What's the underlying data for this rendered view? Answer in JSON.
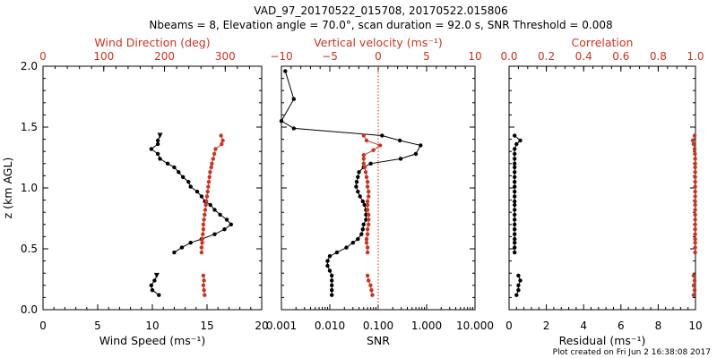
{
  "title_line1": "VAD_97_20170522_015708, 20170522.015806",
  "title_line2": "Nbeams = 8, Elevation angle = 70.0°, scan duration = 92.0 s, SNR Threshold = 0.008",
  "footer": "Plot created on Fri Jun  2 16:38:08 2017",
  "colors": {
    "black": "#000000",
    "red": "#cc3322",
    "dotted": "#dd2200"
  },
  "chart_data": [
    {
      "type": "line",
      "panel": "wind",
      "ylabel": "z (km AGL)",
      "ylim": [
        0,
        2.0
      ],
      "yticks": [
        "0.0",
        "0.5",
        "1.0",
        "1.5",
        "2.0"
      ],
      "xlabel": "Wind Speed (ms⁻¹)",
      "xlim": [
        0,
        20
      ],
      "xticks": [
        "0",
        "5",
        "10",
        "15",
        "20"
      ],
      "top_label": "Wind Direction (deg)",
      "top_lim": [
        0,
        360
      ],
      "top_ticks": [
        "0",
        "100",
        "200",
        "300"
      ],
      "series": [
        {
          "axis": "bottom",
          "color": "#000000",
          "points": [
            [
              10.7,
              1.43
            ],
            [
              10.5,
              1.39
            ],
            [
              10.5,
              1.36
            ],
            [
              9.9,
              1.32
            ],
            [
              10.5,
              1.28
            ],
            [
              10.7,
              1.24
            ],
            [
              11.4,
              1.2
            ],
            [
              12.0,
              1.17
            ],
            [
              12.4,
              1.13
            ],
            [
              12.8,
              1.09
            ],
            [
              13.3,
              1.05
            ],
            [
              13.5,
              1.01
            ],
            [
              14.1,
              0.97
            ],
            [
              14.5,
              0.93
            ],
            [
              14.8,
              0.89
            ],
            [
              15.3,
              0.86
            ],
            [
              15.7,
              0.82
            ],
            [
              16.2,
              0.78
            ],
            [
              16.8,
              0.74
            ],
            [
              17.2,
              0.7
            ],
            [
              16.6,
              0.66
            ],
            [
              15.7,
              0.62
            ],
            [
              14.5,
              0.58
            ],
            [
              13.5,
              0.55
            ],
            [
              12.7,
              0.51
            ],
            [
              12.0,
              0.47
            ]
          ]
        },
        {
          "axis": "bottom",
          "color": "#000000",
          "points": [
            [
              10.4,
              0.28
            ],
            [
              10.2,
              0.24
            ],
            [
              9.9,
              0.2
            ],
            [
              10.0,
              0.16
            ],
            [
              10.6,
              0.12
            ]
          ]
        },
        {
          "axis": "top",
          "color": "#cc3322",
          "points": [
            [
              293,
              1.43
            ],
            [
              296,
              1.39
            ],
            [
              294,
              1.36
            ],
            [
              284,
              1.32
            ],
            [
              282,
              1.28
            ],
            [
              280,
              1.24
            ],
            [
              278,
              1.2
            ],
            [
              277,
              1.17
            ],
            [
              275,
              1.13
            ],
            [
              274,
              1.09
            ],
            [
              273,
              1.05
            ],
            [
              272,
              1.01
            ],
            [
              271,
              0.97
            ],
            [
              270,
              0.93
            ],
            [
              269,
              0.89
            ],
            [
              268,
              0.86
            ],
            [
              267,
              0.82
            ],
            [
              266,
              0.78
            ],
            [
              265,
              0.74
            ],
            [
              264,
              0.7
            ],
            [
              264,
              0.66
            ],
            [
              263,
              0.62
            ],
            [
              262,
              0.58
            ],
            [
              262,
              0.55
            ],
            [
              261,
              0.51
            ],
            [
              261,
              0.47
            ]
          ]
        },
        {
          "axis": "top",
          "color": "#cc3322",
          "points": [
            [
              264,
              0.28
            ],
            [
              265,
              0.24
            ],
            [
              264,
              0.2
            ],
            [
              265,
              0.16
            ],
            [
              266,
              0.12
            ]
          ]
        }
      ]
    },
    {
      "type": "line",
      "panel": "snr",
      "ylim": [
        0,
        2.0
      ],
      "xlabel": "SNR",
      "xscale": "log",
      "xlim": [
        0.001,
        10
      ],
      "xticks": [
        "0.001",
        "0.010",
        "0.100",
        "1.000",
        "10.000"
      ],
      "top_label": "Vertical velocity (ms⁻¹)",
      "top_lim": [
        -10,
        10
      ],
      "top_ticks": [
        "−10",
        "−5",
        "0",
        "5",
        "10"
      ],
      "reference_line": "vertical velocity = 0 (dotted)",
      "series": [
        {
          "axis": "bottom",
          "color": "#000000",
          "points": [
            [
              0.0012,
              1.96
            ],
            [
              0.0018,
              1.73
            ],
            [
              0.001,
              1.55
            ],
            [
              0.0018,
              1.49
            ],
            [
              0.12,
              1.43
            ],
            [
              0.28,
              1.39
            ],
            [
              0.75,
              1.35
            ],
            [
              0.6,
              1.28
            ],
            [
              0.29,
              1.24
            ],
            [
              0.07,
              1.2
            ],
            [
              0.05,
              1.17
            ],
            [
              0.04,
              1.13
            ],
            [
              0.038,
              1.09
            ],
            [
              0.036,
              1.05
            ],
            [
              0.035,
              1.01
            ],
            [
              0.038,
              0.97
            ],
            [
              0.042,
              0.93
            ],
            [
              0.048,
              0.89
            ],
            [
              0.052,
              0.86
            ],
            [
              0.056,
              0.82
            ],
            [
              0.056,
              0.78
            ],
            [
              0.056,
              0.74
            ],
            [
              0.05,
              0.7
            ],
            [
              0.048,
              0.66
            ],
            [
              0.045,
              0.62
            ],
            [
              0.038,
              0.58
            ],
            [
              0.03,
              0.55
            ],
            [
              0.022,
              0.51
            ],
            [
              0.014,
              0.47
            ],
            [
              0.01,
              0.44
            ],
            [
              0.009,
              0.4
            ],
            [
              0.009,
              0.36
            ],
            [
              0.01,
              0.32
            ],
            [
              0.011,
              0.28
            ],
            [
              0.011,
              0.24
            ],
            [
              0.011,
              0.2
            ],
            [
              0.011,
              0.16
            ],
            [
              0.011,
              0.12
            ]
          ]
        },
        {
          "axis": "top",
          "color": "#cc3322",
          "points": [
            [
              -1.5,
              1.43
            ],
            [
              -1.2,
              1.39
            ],
            [
              0.2,
              1.35
            ],
            [
              -0.5,
              1.31
            ],
            [
              -1.5,
              1.27
            ],
            [
              -1.5,
              1.24
            ],
            [
              -1.5,
              1.2
            ],
            [
              -1.4,
              1.17
            ],
            [
              -1.3,
              1.13
            ],
            [
              -1.2,
              1.09
            ],
            [
              -1.1,
              1.05
            ],
            [
              -1.1,
              1.01
            ],
            [
              -1.0,
              0.97
            ],
            [
              -1.0,
              0.93
            ],
            [
              -1.1,
              0.89
            ],
            [
              -1.1,
              0.86
            ],
            [
              -1.1,
              0.82
            ],
            [
              -1.0,
              0.78
            ],
            [
              -1.0,
              0.74
            ],
            [
              -1.0,
              0.7
            ],
            [
              -1.1,
              0.66
            ],
            [
              -1.1,
              0.62
            ],
            [
              -1.2,
              0.58
            ],
            [
              -1.2,
              0.55
            ],
            [
              -1.1,
              0.51
            ],
            [
              -1.1,
              0.47
            ]
          ]
        },
        {
          "axis": "top",
          "color": "#cc3322",
          "points": [
            [
              -1.1,
              0.28
            ],
            [
              -1.0,
              0.24
            ],
            [
              -0.8,
              0.2
            ],
            [
              -0.7,
              0.16
            ],
            [
              -0.6,
              0.12
            ]
          ]
        }
      ]
    },
    {
      "type": "line",
      "panel": "residual",
      "ylim": [
        0,
        2.0
      ],
      "xlabel": "Residual (ms⁻¹)",
      "xlim": [
        0,
        10
      ],
      "xticks": [
        "0",
        "2",
        "4",
        "6",
        "8",
        "10"
      ],
      "top_label": "Correlation",
      "top_lim": [
        0,
        1.0
      ],
      "top_ticks": [
        "0.0",
        "0.2",
        "0.4",
        "0.6",
        "0.8",
        "1.0"
      ],
      "series": [
        {
          "axis": "bottom",
          "color": "#000000",
          "points": [
            [
              0.3,
              1.43
            ],
            [
              0.6,
              1.39
            ],
            [
              0.4,
              1.36
            ],
            [
              0.3,
              1.32
            ],
            [
              0.3,
              1.28
            ],
            [
              0.3,
              1.24
            ],
            [
              0.3,
              1.2
            ],
            [
              0.3,
              1.17
            ],
            [
              0.3,
              1.13
            ],
            [
              0.3,
              1.09
            ],
            [
              0.3,
              1.05
            ],
            [
              0.3,
              1.01
            ],
            [
              0.3,
              0.97
            ],
            [
              0.3,
              0.93
            ],
            [
              0.3,
              0.89
            ],
            [
              0.3,
              0.86
            ],
            [
              0.3,
              0.82
            ],
            [
              0.3,
              0.78
            ],
            [
              0.3,
              0.74
            ],
            [
              0.3,
              0.7
            ],
            [
              0.3,
              0.66
            ],
            [
              0.3,
              0.62
            ],
            [
              0.3,
              0.58
            ],
            [
              0.3,
              0.55
            ],
            [
              0.3,
              0.51
            ],
            [
              0.3,
              0.47
            ]
          ]
        },
        {
          "axis": "bottom",
          "color": "#000000",
          "points": [
            [
              0.5,
              0.28
            ],
            [
              0.6,
              0.24
            ],
            [
              0.5,
              0.2
            ],
            [
              0.5,
              0.16
            ],
            [
              0.4,
              0.12
            ]
          ]
        },
        {
          "axis": "top",
          "color": "#cc3322",
          "points": [
            [
              0.995,
              1.43
            ],
            [
              0.985,
              1.39
            ],
            [
              0.99,
              1.36
            ],
            [
              0.995,
              1.32
            ],
            [
              0.997,
              1.28
            ],
            [
              0.998,
              1.24
            ],
            [
              0.998,
              1.2
            ],
            [
              0.998,
              1.17
            ],
            [
              0.998,
              1.13
            ],
            [
              0.998,
              1.09
            ],
            [
              0.998,
              1.05
            ],
            [
              0.998,
              1.01
            ],
            [
              0.998,
              0.97
            ],
            [
              0.998,
              0.93
            ],
            [
              0.998,
              0.89
            ],
            [
              0.998,
              0.86
            ],
            [
              0.998,
              0.82
            ],
            [
              0.998,
              0.78
            ],
            [
              0.998,
              0.74
            ],
            [
              0.998,
              0.7
            ],
            [
              0.998,
              0.66
            ],
            [
              0.998,
              0.62
            ],
            [
              0.998,
              0.58
            ],
            [
              0.998,
              0.55
            ],
            [
              0.998,
              0.51
            ],
            [
              0.998,
              0.47
            ]
          ]
        },
        {
          "axis": "top",
          "color": "#cc3322",
          "points": [
            [
              0.99,
              0.28
            ],
            [
              0.995,
              0.24
            ],
            [
              0.99,
              0.2
            ],
            [
              0.995,
              0.16
            ],
            [
              0.99,
              0.12
            ]
          ]
        }
      ]
    }
  ]
}
